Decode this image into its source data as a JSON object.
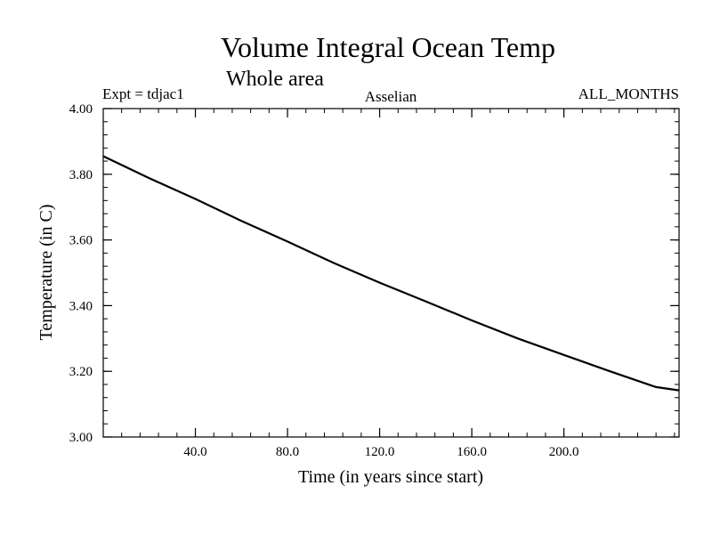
{
  "chart_data": {
    "type": "line",
    "title": "Volume Integral Ocean Temp",
    "subtitle": "Whole area",
    "left_label": "Expt = tdjac1",
    "center_label": "Asselian",
    "right_label": "ALL_MONTHS",
    "xlabel": "Time (in years since start)",
    "ylabel": "Temperature (in C)",
    "xlim": [
      0,
      250
    ],
    "ylim": [
      3.0,
      4.0
    ],
    "x_ticks": [
      40,
      80,
      120,
      160,
      200
    ],
    "x_tick_labels": [
      "40.0",
      "80.0",
      "120.0",
      "160.0",
      "200.0"
    ],
    "y_ticks": [
      3.0,
      3.2,
      3.4,
      3.6,
      3.8,
      4.0
    ],
    "y_tick_labels": [
      "3.00",
      "3.20",
      "3.40",
      "3.60",
      "3.80",
      "4.00"
    ],
    "x_minor_step": 8,
    "y_minor_step": 0.04,
    "line_color": "#000000",
    "series": [
      {
        "name": "Volume Integral Ocean Temp",
        "x": [
          0,
          20,
          40,
          60,
          80,
          100,
          120,
          140,
          160,
          180,
          200,
          220,
          240,
          250
        ],
        "y": [
          3.855,
          3.788,
          3.725,
          3.658,
          3.595,
          3.53,
          3.47,
          3.413,
          3.355,
          3.3,
          3.25,
          3.2,
          3.152,
          3.142
        ]
      }
    ]
  }
}
